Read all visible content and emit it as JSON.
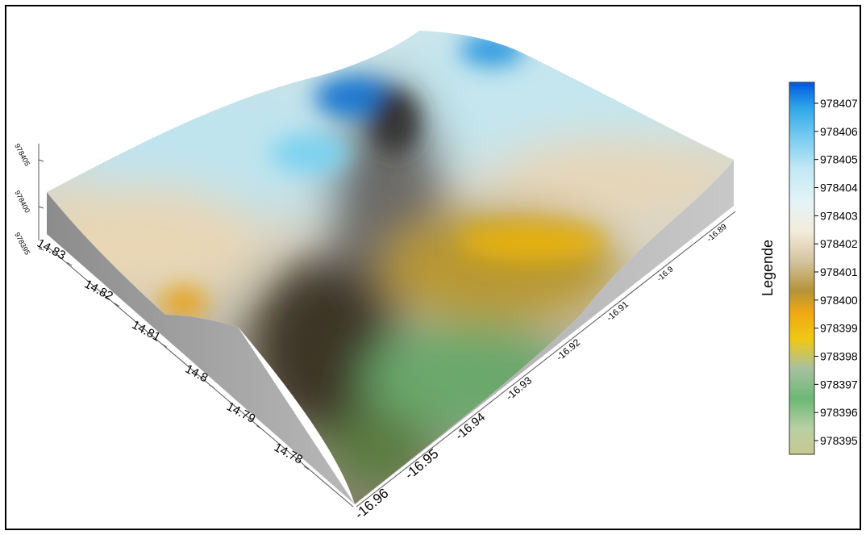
{
  "chart_data": {
    "type": "surface",
    "title": "",
    "legend_title": "Legende",
    "x_axis": {
      "label": "",
      "ticks": [
        "-16.96",
        "-16.95",
        "-16.94",
        "-16.93",
        "-16.92",
        "-16.91",
        "-16.9",
        "-16.89"
      ],
      "range": [
        -16.96,
        -16.89
      ]
    },
    "y_axis": {
      "label": "",
      "ticks": [
        "14.78",
        "14.79",
        "14.8",
        "14.81",
        "14.82",
        "14.83"
      ],
      "range": [
        14.78,
        14.83
      ]
    },
    "z_axis": {
      "label": "",
      "ticks": [
        "978395",
        "978400",
        "978405"
      ],
      "range": [
        978395,
        978407
      ]
    },
    "colorbar": {
      "ticks": [
        "978395",
        "978396",
        "978397",
        "978398",
        "978399",
        "978400",
        "978401",
        "978402",
        "978403",
        "978404",
        "978405",
        "978406",
        "978407"
      ],
      "colors": [
        "#c8c890",
        "#9ccc9c",
        "#6cb874",
        "#a8c0a0",
        "#f0c814",
        "#f0a814",
        "#b49438",
        "#d4c4a0",
        "#f0e8d4",
        "#e0f4f8",
        "#c0e8f4",
        "#80d0f0",
        "#30a8e8",
        "#0060e0"
      ]
    }
  }
}
